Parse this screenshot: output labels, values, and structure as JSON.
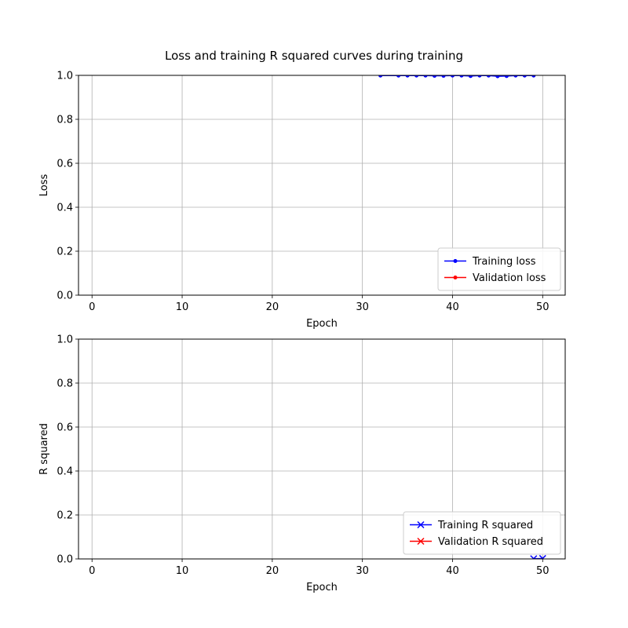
{
  "figure": {
    "title": "Loss and training R squared curves during training"
  },
  "chart_data": [
    {
      "type": "line",
      "xlabel": "Epoch",
      "ylabel": "Loss",
      "xlim": [
        -1.5,
        52.5
      ],
      "ylim": [
        0.0,
        1.0
      ],
      "xticks": [
        0,
        10,
        20,
        30,
        40,
        50
      ],
      "yticks": [
        0.0,
        0.2,
        0.4,
        0.6,
        0.8,
        1.0
      ],
      "ytick_labels": [
        "0.0",
        "0.2",
        "0.4",
        "0.6",
        "0.8",
        "1.0"
      ],
      "grid": true,
      "legend_position": "lower-right",
      "series": [
        {
          "name": "Training loss",
          "color": "#0000ff",
          "marker": "dot",
          "x": [
            32,
            34,
            35,
            36,
            37,
            38,
            39,
            40,
            41,
            42,
            43,
            44,
            45,
            46,
            47,
            48,
            49
          ],
          "y": [
            0.999,
            0.999,
            0.999,
            0.999,
            0.999,
            0.998,
            0.998,
            0.999,
            0.999,
            0.997,
            0.999,
            0.999,
            0.996,
            0.997,
            0.999,
            0.999,
            0.999
          ]
        },
        {
          "name": "Validation loss",
          "color": "#ff0000",
          "marker": "dot",
          "x": [],
          "y": []
        }
      ]
    },
    {
      "type": "line",
      "xlabel": "Epoch",
      "ylabel": "R squared",
      "xlim": [
        -1.5,
        52.5
      ],
      "ylim": [
        0.0,
        1.0
      ],
      "xticks": [
        0,
        10,
        20,
        30,
        40,
        50
      ],
      "yticks": [
        0.0,
        0.2,
        0.4,
        0.6,
        0.8,
        1.0
      ],
      "ytick_labels": [
        "0.0",
        "0.2",
        "0.4",
        "0.6",
        "0.8",
        "1.0"
      ],
      "grid": true,
      "legend_position": "lower-right",
      "series": [
        {
          "name": "Training R squared",
          "color": "#0000ff",
          "marker": "x",
          "x": [
            49,
            50
          ],
          "y": [
            0.001,
            0.002
          ]
        },
        {
          "name": "Validation R squared",
          "color": "#ff0000",
          "marker": "x",
          "x": [],
          "y": []
        }
      ]
    }
  ]
}
